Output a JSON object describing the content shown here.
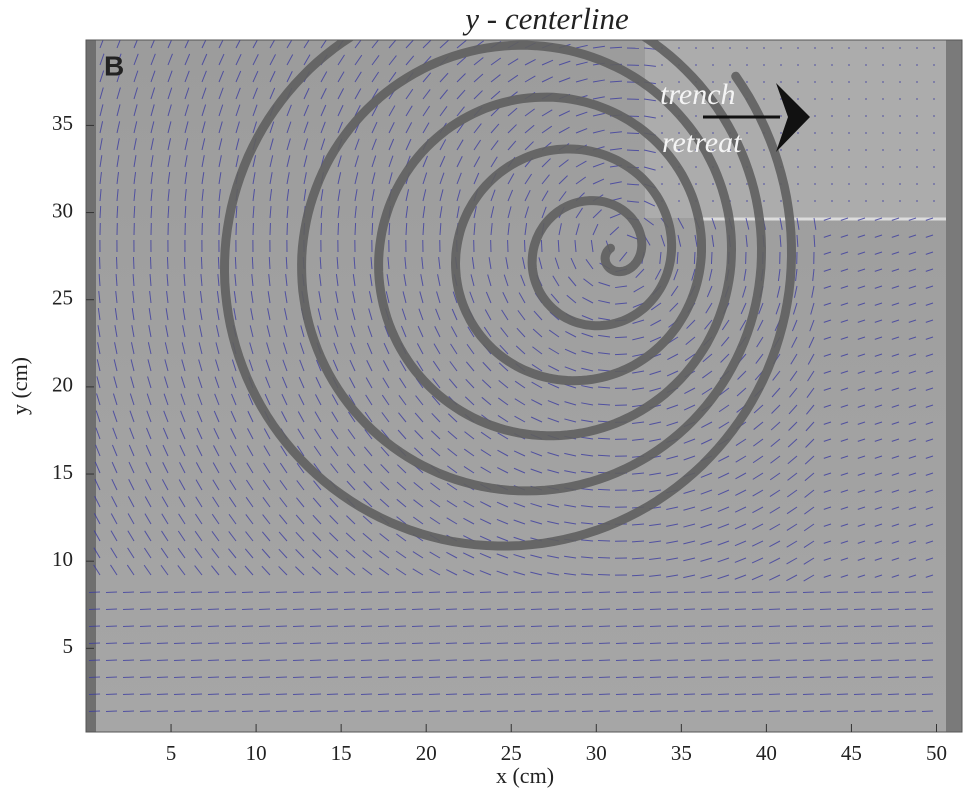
{
  "chart_data": {
    "type": "image",
    "panel_label": "B",
    "title": "y - centerline",
    "x_label": "x (cm)",
    "y_label": "y (cm)",
    "xlim": [
      0,
      51.5
    ],
    "ylim": [
      0.2,
      39.9
    ],
    "xticks": [
      5,
      10,
      15,
      20,
      25,
      30,
      35,
      40,
      45,
      50
    ],
    "yticks": [
      5,
      10,
      15,
      20,
      25,
      30,
      35
    ],
    "annotations": [
      "trench",
      "retreat"
    ]
  }
}
